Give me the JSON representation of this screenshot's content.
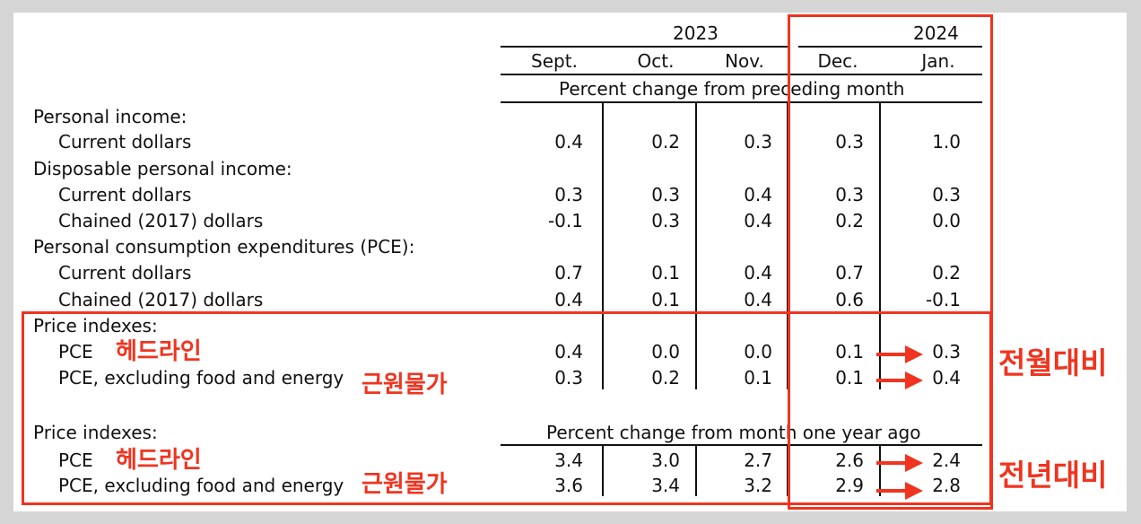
{
  "header": {
    "year_2023": "2023",
    "year_2024": "2024",
    "months": [
      "Sept.",
      "Oct.",
      "Nov.",
      "Dec.",
      "Jan."
    ],
    "subheader_monthly": "Percent change from preceding month",
    "subheader_yearly": "Percent change from month one year ago"
  },
  "rows": {
    "personal_income": "Personal income:",
    "pi_current": {
      "label": "Current dollars",
      "values": [
        "0.4",
        "0.2",
        "0.3",
        "0.3",
        "1.0"
      ]
    },
    "disposable_income": "Disposable personal income:",
    "dpi_current": {
      "label": "Current dollars",
      "values": [
        "0.3",
        "0.3",
        "0.4",
        "0.3",
        "0.3"
      ]
    },
    "dpi_chained": {
      "label": "Chained (2017) dollars",
      "values": [
        "-0.1",
        "0.3",
        "0.4",
        "0.2",
        "0.0"
      ]
    },
    "pce_header": "Personal consumption expenditures (PCE):",
    "pce_current": {
      "label": "Current dollars",
      "values": [
        "0.7",
        "0.1",
        "0.4",
        "0.7",
        "0.2"
      ]
    },
    "pce_chained": {
      "label": "Chained (2017) dollars",
      "values": [
        "0.4",
        "0.1",
        "0.4",
        "0.6",
        "-0.1"
      ]
    },
    "price_indexes_1": "Price indexes:",
    "pi_pce_1": {
      "label": "PCE",
      "values": [
        "0.4",
        "0.0",
        "0.0",
        "0.1",
        "0.3"
      ]
    },
    "pi_core_1": {
      "label": "PCE, excluding food and energy",
      "values": [
        "0.3",
        "0.2",
        "0.1",
        "0.1",
        "0.4"
      ]
    },
    "price_indexes_2": "Price indexes:",
    "pi_pce_2": {
      "label": "PCE",
      "values": [
        "3.4",
        "3.0",
        "2.7",
        "2.6",
        "2.4"
      ]
    },
    "pi_core_2": {
      "label": "PCE, excluding food and energy",
      "values": [
        "3.6",
        "3.4",
        "3.2",
        "2.9",
        "2.8"
      ]
    }
  },
  "annotations": {
    "headline": "헤드라인",
    "core": "근원물가",
    "mom": "전월대비",
    "yoy": "전년대비",
    "accent_color": "#f0341f"
  }
}
